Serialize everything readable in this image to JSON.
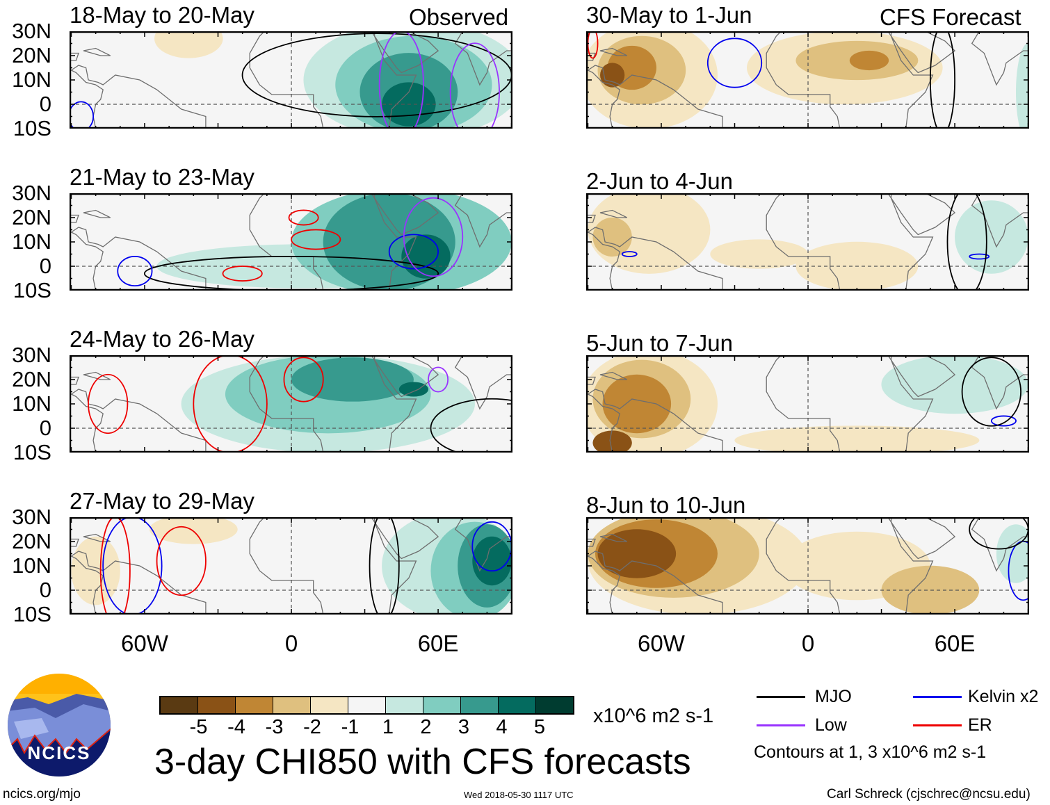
{
  "header": {
    "observed_label": "Observed",
    "forecast_label": "CFS Forecast"
  },
  "lat_labels": [
    "30N",
    "20N",
    "10N",
    "0",
    "10S"
  ],
  "lon_labels": [
    "60W",
    "0",
    "60E"
  ],
  "colors": [
    "#5a3a12",
    "#8a5216",
    "#c08634",
    "#dfc07f",
    "#f5e6c3",
    "#f5f5f5",
    "#c6e8e0",
    "#80cdc0",
    "#379a8e",
    "#046b5f",
    "#003c30"
  ],
  "contour_colors": {
    "MJO": "#000000",
    "Kelvin": "#0000ee",
    "Low": "#9933ff",
    "ER": "#ee0000"
  },
  "panels": [
    {
      "title": "18-May to 20-May",
      "source": "observed",
      "shading": [
        {
          "lon": -42,
          "lat": 27,
          "rlon": 14,
          "rlat": 8,
          "bin": 4
        },
        {
          "lon": 50,
          "lat": 10,
          "rlon": 45,
          "rlat": 24,
          "bin": 6
        },
        {
          "lon": 50,
          "lat": 8,
          "rlon": 32,
          "rlat": 20,
          "bin": 7
        },
        {
          "lon": 48,
          "lat": 5,
          "rlon": 20,
          "rlat": 16,
          "bin": 8
        },
        {
          "lon": 48,
          "lat": 0,
          "rlon": 11,
          "rlat": 9,
          "bin": 9
        }
      ],
      "contours": [
        {
          "type": "MJO",
          "lon": 35,
          "lat": 12,
          "rlon": 55,
          "rlat": 17
        },
        {
          "type": "Low",
          "lon": 45,
          "lat": 8,
          "rlon": 9,
          "rlat": 22
        },
        {
          "type": "Low",
          "lon": 75,
          "lat": 5,
          "rlon": 10,
          "rlat": 20
        },
        {
          "type": "Kelvin",
          "lon": -86,
          "lat": -5,
          "rlon": 5,
          "rlat": 6
        }
      ]
    },
    {
      "title": "21-May to 23-May",
      "source": "observed",
      "shading": [
        {
          "lon": 5,
          "lat": 0,
          "rlon": 60,
          "rlat": 9,
          "bin": 6
        },
        {
          "lon": 45,
          "lat": 10,
          "rlon": 45,
          "rlat": 22,
          "bin": 7
        },
        {
          "lon": 40,
          "lat": 10,
          "rlon": 27,
          "rlat": 20,
          "bin": 8
        },
        {
          "lon": 55,
          "lat": 4,
          "rlon": 10,
          "rlat": 9,
          "bin": 9
        }
      ],
      "contours": [
        {
          "type": "MJO",
          "lon": 0,
          "lat": -3,
          "rlon": 60,
          "rlat": 7
        },
        {
          "type": "Kelvin",
          "lon": -64,
          "lat": -2,
          "rlon": 7,
          "rlat": 6
        },
        {
          "type": "Kelvin",
          "lon": 50,
          "lat": 6,
          "rlon": 10,
          "rlat": 7
        },
        {
          "type": "ER",
          "lon": -20,
          "lat": -3,
          "rlon": 8,
          "rlat": 3
        },
        {
          "type": "ER",
          "lon": 10,
          "lat": 11,
          "rlon": 10,
          "rlat": 4
        },
        {
          "type": "ER",
          "lon": 5,
          "lat": 20,
          "rlon": 6,
          "rlat": 3
        },
        {
          "type": "Low",
          "lon": 58,
          "lat": 12,
          "rlon": 12,
          "rlat": 16
        }
      ]
    },
    {
      "title": "24-May to 26-May",
      "source": "observed",
      "shading": [
        {
          "lon": 15,
          "lat": 10,
          "rlon": 60,
          "rlat": 20,
          "bin": 6
        },
        {
          "lon": 15,
          "lat": 14,
          "rlon": 42,
          "rlat": 16,
          "bin": 7
        },
        {
          "lon": 25,
          "lat": 20,
          "rlon": 25,
          "rlat": 9,
          "bin": 8
        },
        {
          "lon": 50,
          "lat": 16,
          "rlon": 6,
          "rlat": 3,
          "bin": 9
        }
      ],
      "contours": [
        {
          "type": "ER",
          "lon": -75,
          "lat": 10,
          "rlon": 8,
          "rlat": 12
        },
        {
          "type": "ER",
          "lon": -25,
          "lat": 10,
          "rlon": 15,
          "rlat": 20
        },
        {
          "type": "ER",
          "lon": 5,
          "lat": 20,
          "rlon": 8,
          "rlat": 9
        },
        {
          "type": "MJO",
          "lon": 82,
          "lat": 0,
          "rlon": 25,
          "rlat": 12
        },
        {
          "type": "Low",
          "lon": 60,
          "lat": 20,
          "rlon": 4,
          "rlat": 5
        }
      ]
    },
    {
      "title": "27-May to 29-May",
      "source": "observed",
      "shading": [
        {
          "lon": -40,
          "lat": 25,
          "rlon": 18,
          "rlat": 6,
          "bin": 4
        },
        {
          "lon": -80,
          "lat": 8,
          "rlon": 10,
          "rlat": 14,
          "bin": 4
        },
        {
          "lon": 65,
          "lat": 10,
          "rlon": 28,
          "rlat": 22,
          "bin": 6
        },
        {
          "lon": 75,
          "lat": 8,
          "rlon": 18,
          "rlat": 20,
          "bin": 7
        },
        {
          "lon": 80,
          "lat": 10,
          "rlon": 12,
          "rlat": 17,
          "bin": 8
        },
        {
          "lon": 82,
          "lat": 12,
          "rlon": 8,
          "rlat": 10,
          "bin": 9
        }
      ],
      "contours": [
        {
          "type": "Kelvin",
          "lon": -65,
          "lat": 10,
          "rlon": 12,
          "rlat": 20
        },
        {
          "type": "ER",
          "lon": -45,
          "lat": 12,
          "rlon": 10,
          "rlat": 14
        },
        {
          "type": "ER",
          "lon": -72,
          "lat": 8,
          "rlon": 6,
          "rlat": 22
        },
        {
          "type": "Kelvin",
          "lon": 82,
          "lat": 18,
          "rlon": 8,
          "rlat": 10
        },
        {
          "type": "MJO",
          "lon": 38,
          "lat": 10,
          "rlon": 6,
          "rlat": 22
        }
      ]
    },
    {
      "title": "30-May to 1-Jun",
      "source": "forecast",
      "shading": [
        {
          "lon": -65,
          "lat": 12,
          "rlon": 28,
          "rlat": 22,
          "bin": 4
        },
        {
          "lon": -68,
          "lat": 14,
          "rlon": 18,
          "rlat": 14,
          "bin": 3
        },
        {
          "lon": -72,
          "lat": 15,
          "rlon": 10,
          "rlat": 9,
          "bin": 2
        },
        {
          "lon": -80,
          "lat": 12,
          "rlon": 5,
          "rlat": 5,
          "bin": 1
        },
        {
          "lon": 15,
          "lat": 15,
          "rlon": 40,
          "rlat": 15,
          "bin": 4
        },
        {
          "lon": 20,
          "lat": 18,
          "rlon": 25,
          "rlat": 8,
          "bin": 3
        },
        {
          "lon": 25,
          "lat": 18,
          "rlon": 8,
          "rlat": 4,
          "bin": 2
        },
        {
          "lon": 90,
          "lat": 5,
          "rlon": 5,
          "rlat": 20,
          "bin": 6
        }
      ],
      "contours": [
        {
          "type": "Kelvin",
          "lon": -30,
          "lat": 17,
          "rlon": 11,
          "rlat": 10
        },
        {
          "type": "MJO",
          "lon": 55,
          "lat": 10,
          "rlon": 5,
          "rlat": 22
        },
        {
          "type": "ER",
          "lon": -88,
          "lat": 25,
          "rlon": 2,
          "rlat": 6
        }
      ]
    },
    {
      "title": "2-Jun to 4-Jun",
      "source": "forecast",
      "shading": [
        {
          "lon": -65,
          "lat": 15,
          "rlon": 25,
          "rlat": 18,
          "bin": 4
        },
        {
          "lon": -80,
          "lat": 12,
          "rlon": 8,
          "rlat": 8,
          "bin": 3
        },
        {
          "lon": -20,
          "lat": 5,
          "rlon": 20,
          "rlat": 6,
          "bin": 4
        },
        {
          "lon": 20,
          "lat": 0,
          "rlon": 25,
          "rlat": 10,
          "bin": 4
        },
        {
          "lon": 75,
          "lat": 12,
          "rlon": 15,
          "rlat": 15,
          "bin": 6
        }
      ],
      "contours": [
        {
          "type": "Kelvin",
          "lon": -73,
          "lat": 5,
          "rlon": 3,
          "rlat": 1
        },
        {
          "type": "Kelvin",
          "lon": 70,
          "lat": 4,
          "rlon": 4,
          "rlat": 1
        },
        {
          "type": "MJO",
          "lon": 65,
          "lat": 10,
          "rlon": 8,
          "rlat": 22
        }
      ]
    },
    {
      "title": "5-Jun to 7-Jun",
      "source": "forecast",
      "shading": [
        {
          "lon": -65,
          "lat": 10,
          "rlon": 28,
          "rlat": 22,
          "bin": 4
        },
        {
          "lon": -68,
          "lat": 12,
          "rlon": 20,
          "rlat": 16,
          "bin": 3
        },
        {
          "lon": -70,
          "lat": 10,
          "rlon": 14,
          "rlat": 12,
          "bin": 2
        },
        {
          "lon": -80,
          "lat": -6,
          "rlon": 8,
          "rlat": 5,
          "bin": 1
        },
        {
          "lon": 20,
          "lat": -5,
          "rlon": 50,
          "rlat": 6,
          "bin": 4
        },
        {
          "lon": 60,
          "lat": 18,
          "rlon": 30,
          "rlat": 12,
          "bin": 6
        }
      ],
      "contours": [
        {
          "type": "Kelvin",
          "lon": 80,
          "lat": 3,
          "rlon": 5,
          "rlat": 2
        },
        {
          "type": "MJO",
          "lon": 75,
          "lat": 15,
          "rlon": 12,
          "rlat": 14
        }
      ]
    },
    {
      "title": "8-Jun to 10-Jun",
      "source": "forecast",
      "shading": [
        {
          "lon": -45,
          "lat": 12,
          "rlon": 45,
          "rlat": 22,
          "bin": 4
        },
        {
          "lon": -55,
          "lat": 15,
          "rlon": 35,
          "rlat": 18,
          "bin": 3
        },
        {
          "lon": -62,
          "lat": 15,
          "rlon": 25,
          "rlat": 14,
          "bin": 2
        },
        {
          "lon": -70,
          "lat": 15,
          "rlon": 16,
          "rlat": 10,
          "bin": 1
        },
        {
          "lon": 20,
          "lat": 10,
          "rlon": 30,
          "rlat": 14,
          "bin": 4
        },
        {
          "lon": 50,
          "lat": 0,
          "rlon": 20,
          "rlat": 10,
          "bin": 3
        },
        {
          "lon": 85,
          "lat": 15,
          "rlon": 8,
          "rlat": 12,
          "bin": 6
        }
      ],
      "contours": [
        {
          "type": "Kelvin",
          "lon": 88,
          "lat": 8,
          "rlon": 6,
          "rlat": 12
        },
        {
          "type": "MJO",
          "lon": 78,
          "lat": 25,
          "rlon": 12,
          "rlat": 8
        }
      ]
    }
  ],
  "colorbar": {
    "labels": [
      "-5",
      "-4",
      "-3",
      "-2",
      "-1",
      "1",
      "2",
      "3",
      "4",
      "5"
    ],
    "units": "x10^6 m2 s-1"
  },
  "title": "3-day CHI850 with CFS forecasts",
  "legend": {
    "items": [
      {
        "label": "MJO",
        "color": "#000000"
      },
      {
        "label": "Kelvin x2",
        "color": "#0000ee"
      },
      {
        "label": "Low",
        "color": "#9933ff"
      },
      {
        "label": "ER",
        "color": "#ee0000"
      }
    ],
    "note": "Contours at 1, 3 x10^6 m2 s-1"
  },
  "logo": {
    "text": "NCICS"
  },
  "footer": {
    "url": "ncics.org/mjo",
    "timestamp": "Wed 2018-05-30 1117 UTC",
    "credit": "Carl Schreck (cjschrec@ncsu.edu)"
  }
}
